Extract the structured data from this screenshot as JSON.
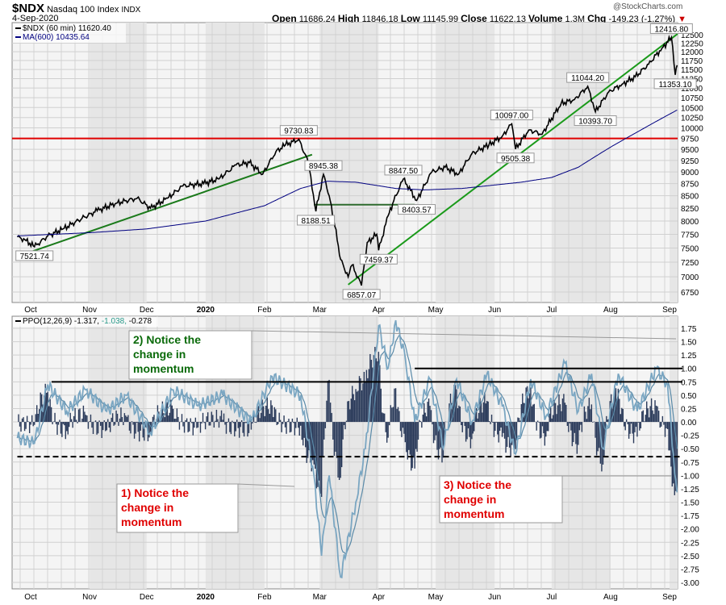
{
  "header": {
    "symbol": "$NDX",
    "name": "Nasdaq 100 Index",
    "exchange": "INDX",
    "date": "4-Sep-2020",
    "watermark": "@StockCharts.com",
    "open_label": "Open",
    "open": "11686.24",
    "high_label": "High",
    "high": "11846.18",
    "low_label": "Low",
    "low": "11145.99",
    "close_label": "Close",
    "close": "11622.13",
    "volume_label": "Volume",
    "volume": "1.3M",
    "chg_label": "Chg",
    "chg": "-149.23 (-1.27%)",
    "down_color": "#cc0000"
  },
  "chart_data": [
    {
      "type": "line",
      "scale": "log",
      "ylim": [
        6750,
        12500
      ],
      "yticks": [
        6750,
        7000,
        7250,
        7500,
        7750,
        8000,
        8250,
        8500,
        8750,
        9000,
        9250,
        9500,
        9750,
        10000,
        10250,
        10500,
        10750,
        11000,
        11250,
        11500,
        11750,
        12000,
        12250,
        12500
      ],
      "xticks": [
        [
          "2019-10-01",
          "Oct"
        ],
        [
          "2019-11-01",
          "Nov"
        ],
        [
          "2019-12-01",
          "Dec"
        ],
        [
          "2020-01-01",
          "2020"
        ],
        [
          "2020-02-01",
          "Feb"
        ],
        [
          "2020-03-01",
          "Mar"
        ],
        [
          "2020-04-01",
          "Apr"
        ],
        [
          "2020-05-01",
          "May"
        ],
        [
          "2020-06-01",
          "Jun"
        ],
        [
          "2020-07-01",
          "Jul"
        ],
        [
          "2020-08-01",
          "Aug"
        ],
        [
          "2020-09-01",
          "Sep"
        ]
      ],
      "grid": true,
      "legend": "top-left",
      "series": [
        {
          "name": "$NDX (60 min) 11620.40",
          "color": "#000000",
          "points": [
            [
              "2019-09-24",
              7700
            ],
            [
              "2019-09-28",
              7650
            ],
            [
              "2019-10-03",
              7522
            ],
            [
              "2019-10-10",
              7720
            ],
            [
              "2019-10-18",
              7850
            ],
            [
              "2019-10-28",
              8050
            ],
            [
              "2019-11-05",
              8200
            ],
            [
              "2019-11-15",
              8350
            ],
            [
              "2019-11-26",
              8450
            ],
            [
              "2019-12-03",
              8250
            ],
            [
              "2019-12-12",
              8450
            ],
            [
              "2019-12-20",
              8700
            ],
            [
              "2019-12-31",
              8750
            ],
            [
              "2020-01-08",
              8850
            ],
            [
              "2020-01-17",
              9150
            ],
            [
              "2020-01-24",
              9200
            ],
            [
              "2020-01-31",
              8950
            ],
            [
              "2020-02-07",
              9450
            ],
            [
              "2020-02-12",
              9600
            ],
            [
              "2020-02-19",
              9731
            ],
            [
              "2020-02-24",
              9200
            ],
            [
              "2020-02-28",
              8189
            ],
            [
              "2020-03-03",
              8945
            ],
            [
              "2020-03-06",
              8500
            ],
            [
              "2020-03-09",
              7900
            ],
            [
              "2020-03-12",
              7300
            ],
            [
              "2020-03-16",
              7000
            ],
            [
              "2020-03-18",
              7200
            ],
            [
              "2020-03-23",
              6857
            ],
            [
              "2020-03-26",
              7600
            ],
            [
              "2020-03-31",
              7750
            ],
            [
              "2020-04-01",
              7459
            ],
            [
              "2020-04-06",
              8100
            ],
            [
              "2020-04-09",
              8400
            ],
            [
              "2020-04-14",
              8848
            ],
            [
              "2020-04-21",
              8404
            ],
            [
              "2020-04-29",
              9000
            ],
            [
              "2020-05-06",
              9100
            ],
            [
              "2020-05-13",
              8950
            ],
            [
              "2020-05-20",
              9400
            ],
            [
              "2020-05-29",
              9600
            ],
            [
              "2020-06-05",
              9800
            ],
            [
              "2020-06-10",
              10097
            ],
            [
              "2020-06-12",
              9505
            ],
            [
              "2020-06-19",
              9950
            ],
            [
              "2020-06-26",
              9850
            ],
            [
              "2020-07-06",
              10600
            ],
            [
              "2020-07-13",
              10700
            ],
            [
              "2020-07-20",
              11044
            ],
            [
              "2020-07-24",
              10394
            ],
            [
              "2020-07-31",
              10900
            ],
            [
              "2020-08-07",
              11100
            ],
            [
              "2020-08-14",
              11300
            ],
            [
              "2020-08-21",
              11650
            ],
            [
              "2020-08-28",
              12100
            ],
            [
              "2020-09-02",
              12417
            ],
            [
              "2020-09-04",
              11353
            ],
            [
              "2020-09-05",
              11620
            ]
          ]
        },
        {
          "name": "MA(600) 10435.64",
          "color": "#000080",
          "points": [
            [
              "2019-09-24",
              7720
            ],
            [
              "2019-11-01",
              7780
            ],
            [
              "2019-12-01",
              7850
            ],
            [
              "2020-01-01",
              8000
            ],
            [
              "2020-02-01",
              8300
            ],
            [
              "2020-02-20",
              8650
            ],
            [
              "2020-03-05",
              8800
            ],
            [
              "2020-03-20",
              8780
            ],
            [
              "2020-04-10",
              8650
            ],
            [
              "2020-04-25",
              8620
            ],
            [
              "2020-05-15",
              8650
            ],
            [
              "2020-06-15",
              8780
            ],
            [
              "2020-07-01",
              8880
            ],
            [
              "2020-07-15",
              9100
            ],
            [
              "2020-08-01",
              9550
            ],
            [
              "2020-08-15",
              9900
            ],
            [
              "2020-09-05",
              10436
            ]
          ]
        }
      ],
      "annotations": {
        "labels": [
          [
            "2019-10-03",
            7521.74,
            "7521.74",
            "below"
          ],
          [
            "2020-02-19",
            9730.83,
            "9730.83",
            "above"
          ],
          [
            "2020-02-28",
            8188.51,
            "8188.51",
            "below"
          ],
          [
            "2020-03-03",
            8945.38,
            "8945.38",
            "above"
          ],
          [
            "2020-03-23",
            6857.07,
            "6857.07",
            "below"
          ],
          [
            "2020-04-01",
            7459.37,
            "7459.37",
            "below"
          ],
          [
            "2020-04-14",
            8847.5,
            "8847.50",
            "above"
          ],
          [
            "2020-04-21",
            8403.57,
            "8403.57",
            "below"
          ],
          [
            "2020-06-10",
            10097.0,
            "10097.00",
            "above"
          ],
          [
            "2020-06-12",
            9505.38,
            "9505.38",
            "below"
          ],
          [
            "2020-07-20",
            11044.2,
            "11044.20",
            "above"
          ],
          [
            "2020-07-24",
            10393.7,
            "10393.70",
            "below"
          ],
          [
            "2020-09-02",
            12416.8,
            "12416.80",
            "above"
          ],
          [
            "2020-09-04",
            11353.1,
            "11353.10",
            "below"
          ]
        ],
        "hline": {
          "value": 9750,
          "color": "#e00000"
        },
        "trendlines": [
          {
            "from": [
              "2019-10-01",
              7430
            ],
            "to": [
              "2020-02-26",
              9380
            ],
            "color": "#1a7a1a"
          },
          {
            "from": [
              "2020-02-27",
              8320
            ],
            "to": [
              "2020-04-20",
              8320
            ],
            "color": "#2e6b2e"
          },
          {
            "from": [
              "2020-03-16",
              6870
            ],
            "to": [
              "2020-09-15",
              12150
            ],
            "color": "#1a9a1a"
          }
        ]
      }
    },
    {
      "type": "line",
      "title": "PPO(12,26,9)",
      "values_text": [
        "-1.317",
        "-1.038",
        "-0.278"
      ],
      "ylim": [
        -3.0,
        1.75
      ],
      "yticks": [
        1.75,
        1.5,
        1.25,
        1.0,
        0.75,
        0.5,
        0.25,
        0.0,
        -0.25,
        -0.5,
        -0.75,
        -1.0,
        -1.25,
        -1.5,
        -1.75,
        -2.0,
        -2.25,
        -2.5,
        -2.75,
        -3.0
      ],
      "grid": true,
      "series": [
        {
          "name": "PPO",
          "color": "#000000",
          "points": [
            [
              "2019-09-24",
              -0.3
            ],
            [
              "2019-10-03",
              -0.4
            ],
            [
              "2019-10-10",
              0.7
            ],
            [
              "2019-10-20",
              0.2
            ],
            [
              "2019-10-30",
              0.6
            ],
            [
              "2019-11-10",
              0.2
            ],
            [
              "2019-11-20",
              0.5
            ],
            [
              "2019-12-03",
              -0.2
            ],
            [
              "2019-12-15",
              0.6
            ],
            [
              "2019-12-28",
              0.3
            ],
            [
              "2020-01-10",
              0.5
            ],
            [
              "2020-01-25",
              0.0
            ],
            [
              "2020-02-05",
              0.85
            ],
            [
              "2020-02-20",
              0.5
            ],
            [
              "2020-02-27",
              -1.0
            ],
            [
              "2020-03-02",
              -2.5
            ],
            [
              "2020-03-06",
              -1.0
            ],
            [
              "2020-03-12",
              -2.9
            ],
            [
              "2020-03-20",
              -1.5
            ],
            [
              "2020-03-25",
              -0.5
            ],
            [
              "2020-04-01",
              1.8
            ],
            [
              "2020-04-06",
              1.0
            ],
            [
              "2020-04-10",
              1.9
            ],
            [
              "2020-04-15",
              1.2
            ],
            [
              "2020-04-20",
              0.0
            ],
            [
              "2020-04-28",
              0.8
            ],
            [
              "2020-05-05",
              -0.5
            ],
            [
              "2020-05-12",
              0.8
            ],
            [
              "2020-05-20",
              0.0
            ],
            [
              "2020-05-28",
              0.9
            ],
            [
              "2020-06-05",
              0.3
            ],
            [
              "2020-06-12",
              -0.6
            ],
            [
              "2020-06-20",
              0.8
            ],
            [
              "2020-06-28",
              0.1
            ],
            [
              "2020-07-08",
              1.1
            ],
            [
              "2020-07-15",
              0.2
            ],
            [
              "2020-07-22",
              0.9
            ],
            [
              "2020-07-28",
              -0.5
            ],
            [
              "2020-08-05",
              0.9
            ],
            [
              "2020-08-15",
              0.2
            ],
            [
              "2020-08-25",
              1.0
            ],
            [
              "2020-08-31",
              0.7
            ],
            [
              "2020-09-03",
              -0.6
            ],
            [
              "2020-09-05",
              -1.317
            ]
          ]
        },
        {
          "name": "Signal",
          "color": "#5a8aa8"
        },
        {
          "name": "Histogram",
          "color": "#2a3a5a"
        }
      ],
      "annotations": {
        "hlines": [
          {
            "value": 0.75,
            "from": "2019-10-12",
            "to": "2020-09-08",
            "style": "solid"
          },
          {
            "value": 1.0,
            "from": "2020-04-20",
            "to": "2020-09-08",
            "style": "solid"
          },
          {
            "value": -0.65,
            "from": "2019-09-24",
            "to": "2020-09-08",
            "style": "dashed"
          }
        ],
        "callouts": [
          {
            "text": [
              "2) Notice the",
              "change in",
              "momentum"
            ],
            "color": "#0a6a0a"
          },
          {
            "text": [
              "1) Notice the",
              "change in",
              "momentum"
            ],
            "color": "#e00000"
          },
          {
            "text": [
              "3) Notice the",
              "change in",
              "momentum"
            ],
            "color": "#e00000"
          }
        ]
      }
    }
  ]
}
